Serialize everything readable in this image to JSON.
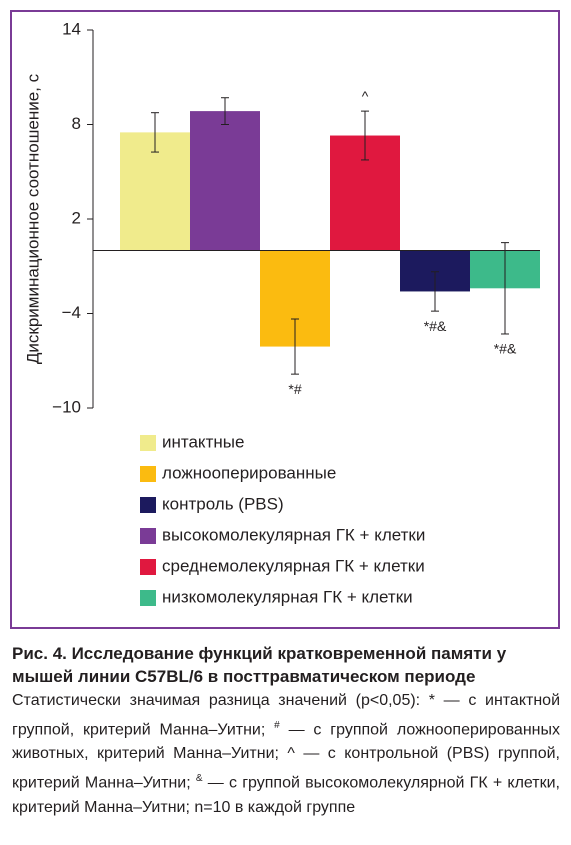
{
  "chart_data": {
    "type": "bar",
    "y_label": "Дискриминационное соотношение, с",
    "ylim": [
      -10,
      14
    ],
    "yticks": [
      14,
      8,
      2,
      {
        "value": -4,
        "label": "−4"
      },
      {
        "value": -10,
        "label": "−10"
      }
    ],
    "series": [
      {
        "name": "интактные",
        "color": "#f0eb8c",
        "values": [
          7.5
        ],
        "errors": [
          1.25
        ],
        "annotation": null
      },
      {
        "name": "ложнооперированные",
        "color": "#fbbb10",
        "values": [
          -6.1
        ],
        "errors": [
          1.75
        ],
        "annotation": "*#"
      },
      {
        "name": "контроль (PBS)",
        "color": "#1c1a5e",
        "values": [
          -2.6
        ],
        "errors": [
          1.25
        ],
        "annotation": "*#&"
      },
      {
        "name": "высокомолекулярная ГК + клетки",
        "color": "#7a3b96",
        "values": [
          8.85
        ],
        "errors": [
          0.85
        ],
        "annotation": null
      },
      {
        "name": "среднемолекулярная ГК + клетки",
        "color": "#e0183f",
        "values": [
          7.3
        ],
        "errors": [
          1.55
        ],
        "annotation": "^"
      },
      {
        "name": "низкомолекулярная ГК + клетки",
        "color": "#3dba8a",
        "values": [
          -2.4
        ],
        "errors": [
          2.9
        ],
        "annotation": "*#&"
      }
    ]
  },
  "caption": {
    "title": "Рис. 4. Исследование функций кратковременной памяти у мышей линии C57BL/6 в посттравматическом периоде",
    "parts": [
      {
        "text": "Статистически значимая разница значений (p<0,05): * — с интактной группой, критерий Манна–Уитни; "
      },
      {
        "sup": "#"
      },
      {
        "text": " — с группой ложнооперированных животных, критерий Манна–Уитни; ^ — с контрольной (PBS) группой, критерий Манна–Уитни; "
      },
      {
        "sup": "&"
      },
      {
        "text": " — с группой высокомолекулярной ГК + клетки, критерий Манна–Уитни; n=10 в каждой группе"
      }
    ]
  }
}
